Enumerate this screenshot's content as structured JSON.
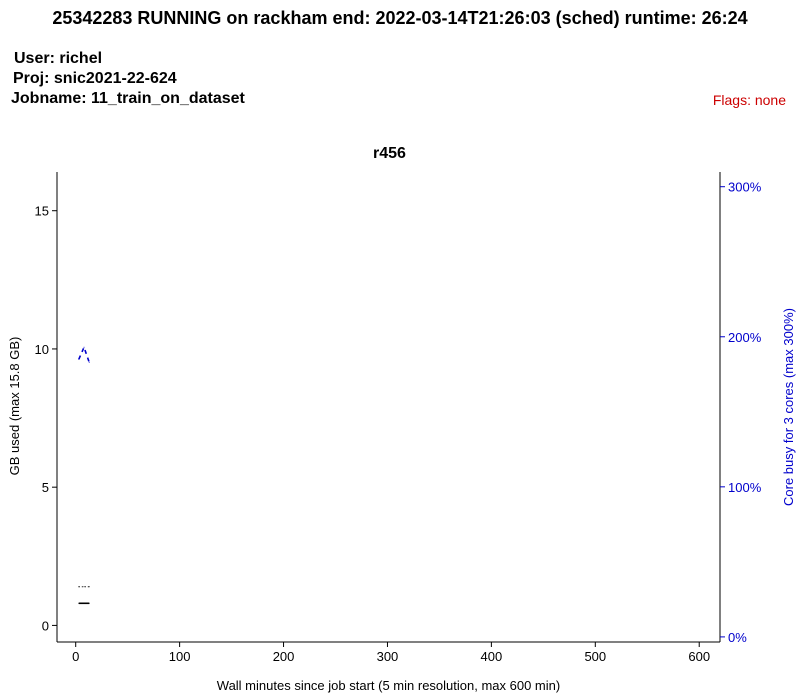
{
  "header": {
    "job_id": "25342283",
    "status": "RUNNING",
    "cluster": "rackham",
    "end": "2022-03-14T21:26:03",
    "end_note": "(sched)",
    "runtime": "26:24",
    "title_text": "25342283 RUNNING on rackham  end: 2022-03-14T21:26:03 (sched)  runtime: 26:24",
    "user_line": "User: richel",
    "proj_line": "Proj: snic2021-22-624",
    "jobname_line": "Jobname: 11_train_on_dataset",
    "flags_line": "Flags: none"
  },
  "colors": {
    "memory": "#000000",
    "cpu": "#0000cc",
    "flags": "#cc0000"
  },
  "chart_data": {
    "type": "line",
    "title": "r456",
    "xlabel": "Wall minutes since job start (5 min resolution, max 600 min)",
    "ylabel": "GB used (max 15.8 GB)",
    "y2label": "Core busy for 3 cores (max 300%)",
    "xlim": [
      -18,
      620
    ],
    "ylim": [
      -0.6,
      16.4
    ],
    "y2lim": [
      -3.4,
      309.8
    ],
    "x_ticks": [
      0,
      100,
      200,
      300,
      400,
      500,
      600
    ],
    "y_ticks": [
      0,
      5,
      10,
      15
    ],
    "y2_ticks": [
      0,
      100,
      200,
      300
    ],
    "y2_tick_labels": [
      "0%",
      "100%",
      "200%",
      "300%"
    ],
    "grid": false,
    "series": [
      {
        "axis": "left",
        "style": "solid",
        "color": "#000000",
        "x": [
          3,
          8,
          13
        ],
        "y": [
          0.8,
          0.8,
          0.8
        ]
      },
      {
        "axis": "left",
        "style": "dotted",
        "color": "#000000",
        "x": [
          3,
          8,
          13
        ],
        "y": [
          1.4,
          1.4,
          1.4
        ]
      },
      {
        "axis": "right",
        "style": "dashed",
        "color": "#0000cc",
        "x": [
          3,
          8,
          13
        ],
        "y": [
          185,
          193,
          183
        ]
      }
    ]
  }
}
